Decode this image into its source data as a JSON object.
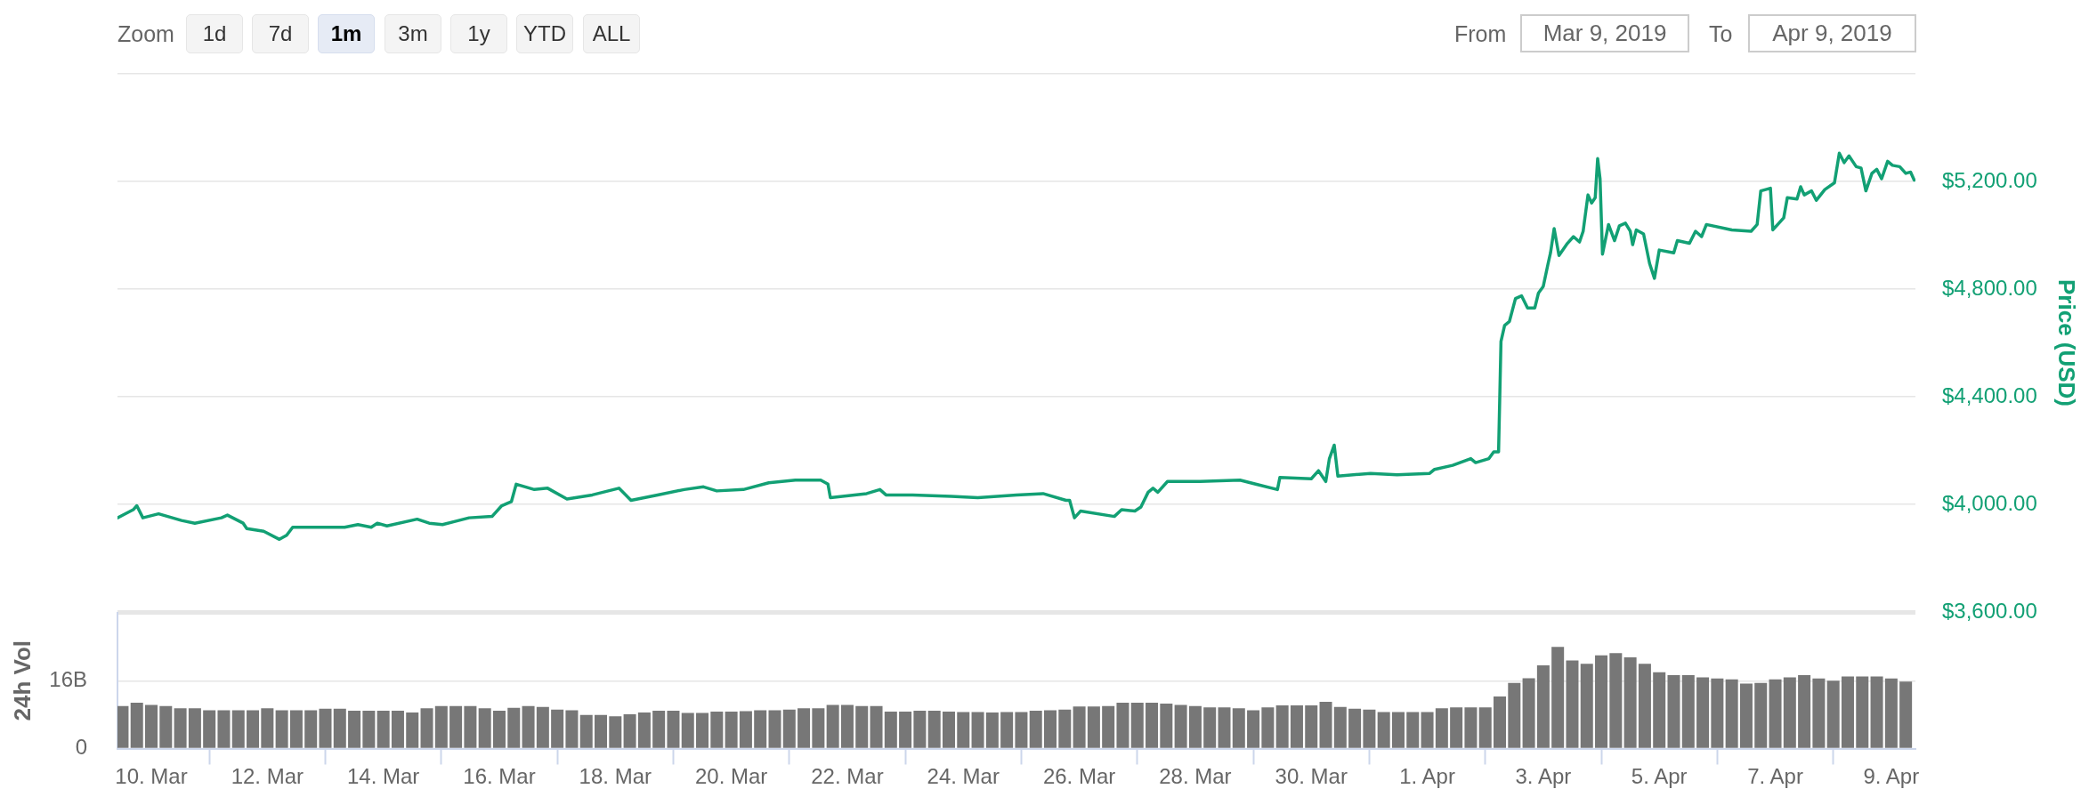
{
  "chart_data": [
    {
      "type": "line",
      "color": "#12a074",
      "xlim": [
        "2019-03-09T10:00",
        "2019-04-09T10:00"
      ],
      "ylim": [
        3600,
        5600
      ],
      "yticks": [
        {
          "value": 3600,
          "label": "$3,600.00"
        },
        {
          "value": 4000,
          "label": "$4,000.00"
        },
        {
          "value": 4400,
          "label": "$4,400.00"
        },
        {
          "value": 4800,
          "label": "$4,800.00"
        },
        {
          "value": 5200,
          "label": "$5,200.00"
        },
        {
          "value": 5600,
          "label": null
        }
      ],
      "ylabel": "Price (USD)",
      "grid": "y",
      "tick_labels": "y",
      "annotations": [
        "Zoom",
        "1d",
        "7d",
        "1m",
        "3m",
        "1y",
        "YTD",
        "ALL",
        "From",
        "Mar 9, 2019",
        "To",
        "Apr 9, 2019"
      ],
      "x": [
        "2019-03-09T10:00",
        "2019-03-09T16:30",
        "2019-03-09T18:00",
        "2019-03-09T20:30",
        "2019-03-10T03:00",
        "2019-03-10T12:30",
        "2019-03-10T18:00",
        "2019-03-11T05:00",
        "2019-03-11T07:30",
        "2019-03-11T14:00",
        "2019-03-11T15:30",
        "2019-03-11T22:30",
        "2019-03-12T05:00",
        "2019-03-12T08:00",
        "2019-03-12T10:30",
        "2019-03-12T21:30",
        "2019-03-13T08:00",
        "2019-03-13T13:30",
        "2019-03-13T19:00",
        "2019-03-13T21:30",
        "2019-03-14T01:30",
        "2019-03-14T14:00",
        "2019-03-14T19:00",
        "2019-03-15T00:30",
        "2019-03-15T11:30",
        "2019-03-15T21:00",
        "2019-03-16T01:00",
        "2019-03-16T05:00",
        "2019-03-16T07:00",
        "2019-03-16T14:30",
        "2019-03-16T20:00",
        "2019-03-17T04:00",
        "2019-03-17T14:30",
        "2019-03-18T01:30",
        "2019-03-18T06:30",
        "2019-03-18T17:30",
        "2019-03-19T04:30",
        "2019-03-19T12:30",
        "2019-03-19T18:00",
        "2019-03-20T05:00",
        "2019-03-20T15:30",
        "2019-03-21T02:30",
        "2019-03-21T13:00",
        "2019-03-21T16:00",
        "2019-03-21T17:00",
        "2019-03-22T08:00",
        "2019-03-22T13:30",
        "2019-03-22T16:00",
        "2019-03-23T03:00",
        "2019-03-23T19:00",
        "2019-03-24T06:00",
        "2019-03-24T22:00",
        "2019-03-25T09:00",
        "2019-03-25T18:30",
        "2019-03-25T20:00",
        "2019-03-25T22:00",
        "2019-03-26T00:30",
        "2019-03-26T14:30",
        "2019-03-26T17:30",
        "2019-03-26T23:00",
        "2019-03-27T01:30",
        "2019-03-27T04:30",
        "2019-03-27T06:30",
        "2019-03-27T08:30",
        "2019-03-27T12:30",
        "2019-03-28T02:00",
        "2019-03-28T18:30",
        "2019-03-29T01:00",
        "2019-03-29T10:00",
        "2019-03-29T11:00",
        "2019-03-30T00:00",
        "2019-03-30T03:00",
        "2019-03-30T06:00",
        "2019-03-30T07:30",
        "2019-03-30T09:30",
        "2019-03-30T11:00",
        "2019-03-31T00:30",
        "2019-03-31T11:30",
        "2019-04-01T01:00",
        "2019-04-01T03:00",
        "2019-04-01T10:30",
        "2019-04-01T18:00",
        "2019-04-01T20:00",
        "2019-04-02T01:30",
        "2019-04-02T03:30",
        "2019-04-02T05:30",
        "2019-04-02T06:30",
        "2019-04-02T08:00",
        "2019-04-02T10:00",
        "2019-04-02T12:30",
        "2019-04-02T15:00",
        "2019-04-02T17:30",
        "2019-04-02T20:30",
        "2019-04-02T22:00",
        "2019-04-03T00:00",
        "2019-04-03T02:00",
        "2019-04-03T03:00",
        "2019-04-03T04:30",
        "2019-04-03T06:30",
        "2019-04-03T10:00",
        "2019-04-03T12:30",
        "2019-04-03T15:00",
        "2019-04-03T16:30",
        "2019-04-03T18:30",
        "2019-04-03T20:00",
        "2019-04-03T21:30",
        "2019-04-03T22:30",
        "2019-04-03T23:30",
        "2019-04-04T00:30",
        "2019-04-04T03:00",
        "2019-04-04T05:30",
        "2019-04-04T07:30",
        "2019-04-04T10:00",
        "2019-04-04T12:00",
        "2019-04-04T13:00",
        "2019-04-04T14:30",
        "2019-04-04T17:30",
        "2019-04-04T20:00",
        "2019-04-04T22:00",
        "2019-04-05T00:00",
        "2019-04-05T06:00",
        "2019-04-05T07:30",
        "2019-04-05T12:30",
        "2019-04-05T15:00",
        "2019-04-05T17:30",
        "2019-04-05T19:30",
        "2019-04-06T06:00",
        "2019-04-06T14:00",
        "2019-04-06T16:30",
        "2019-04-06T18:00",
        "2019-04-06T22:00",
        "2019-04-06T23:00",
        "2019-04-07T03:30",
        "2019-04-07T05:00",
        "2019-04-07T09:00",
        "2019-04-07T10:30",
        "2019-04-07T12:00",
        "2019-04-07T15:00",
        "2019-04-07T17:00",
        "2019-04-07T20:30",
        "2019-04-08T00:30",
        "2019-04-08T02:30",
        "2019-04-08T04:30",
        "2019-04-08T06:30",
        "2019-04-08T09:30",
        "2019-04-08T11:30",
        "2019-04-08T13:30",
        "2019-04-08T16:00",
        "2019-04-08T18:00",
        "2019-04-08T20:00",
        "2019-04-08T22:30",
        "2019-04-09T00:30",
        "2019-04-09T03:30",
        "2019-04-09T06:00",
        "2019-04-09T08:00",
        "2019-04-09T09:30"
      ],
      "values": [
        3950,
        3980,
        3995,
        3950,
        3965,
        3940,
        3930,
        3950,
        3960,
        3930,
        3910,
        3900,
        3870,
        3885,
        3915,
        3915,
        3915,
        3925,
        3915,
        3930,
        3920,
        3945,
        3930,
        3925,
        3950,
        3955,
        3995,
        4010,
        4075,
        4055,
        4060,
        4020,
        4035,
        4060,
        4015,
        4035,
        4055,
        4065,
        4050,
        4055,
        4080,
        4090,
        4090,
        4075,
        4025,
        4040,
        4055,
        4035,
        4035,
        4030,
        4025,
        4035,
        4040,
        4015,
        4015,
        3950,
        3975,
        3955,
        3980,
        3975,
        3990,
        4045,
        4060,
        4045,
        4085,
        4085,
        4090,
        4075,
        4055,
        4100,
        4095,
        4125,
        4085,
        4170,
        4220,
        4105,
        4115,
        4110,
        4115,
        4130,
        4145,
        4170,
        4155,
        4170,
        4195,
        4195,
        4605,
        4665,
        4680,
        4765,
        4775,
        4730,
        4730,
        4785,
        4810,
        4895,
        4935,
        5025,
        4925,
        4970,
        4995,
        4975,
        5015,
        5150,
        5120,
        5140,
        5285,
        5210,
        4930,
        5040,
        4980,
        5035,
        5045,
        5015,
        4965,
        5020,
        5005,
        4895,
        4840,
        4945,
        4935,
        4980,
        4970,
        5015,
        4995,
        5040,
        5020,
        5015,
        5040,
        5165,
        5175,
        5020,
        5065,
        5140,
        5135,
        5180,
        5150,
        5165,
        5130,
        5170,
        5195,
        5305,
        5270,
        5295,
        5255,
        5250,
        5165,
        5230,
        5245,
        5210,
        5275,
        5260,
        5255,
        5230,
        5235,
        5205
      ]
    },
    {
      "type": "bar",
      "color": "#777777",
      "xlim": [
        "2019-03-09T10:00",
        "2019-04-09T10:00"
      ],
      "xticks": [
        {
          "value": "2019-03-10",
          "label": "10. Mar"
        },
        {
          "value": "2019-03-12",
          "label": "12. Mar"
        },
        {
          "value": "2019-03-14",
          "label": "14. Mar"
        },
        {
          "value": "2019-03-16",
          "label": "16. Mar"
        },
        {
          "value": "2019-03-18",
          "label": "18. Mar"
        },
        {
          "value": "2019-03-20",
          "label": "20. Mar"
        },
        {
          "value": "2019-03-22",
          "label": "22. Mar"
        },
        {
          "value": "2019-03-24",
          "label": "24. Mar"
        },
        {
          "value": "2019-03-26",
          "label": "26. Mar"
        },
        {
          "value": "2019-03-28",
          "label": "28. Mar"
        },
        {
          "value": "2019-03-30",
          "label": "30. Mar"
        },
        {
          "value": "2019-04-01",
          "label": "1. Apr"
        },
        {
          "value": "2019-04-03",
          "label": "3. Apr"
        },
        {
          "value": "2019-04-05",
          "label": "5. Apr"
        },
        {
          "value": "2019-04-07",
          "label": "7. Apr"
        },
        {
          "value": "2019-04-09",
          "label": "9. Apr"
        }
      ],
      "ylim": [
        0,
        32
      ],
      "yticks": [
        0,
        {
          "value": 16,
          "label": "16B"
        }
      ],
      "ylabel": "24h Vol",
      "grid": "y",
      "x": [
        "2019-03-09T12:00",
        "2019-03-09T18:00",
        "2019-03-10T00:00",
        "2019-03-10T06:00",
        "2019-03-10T12:00",
        "2019-03-10T18:00",
        "2019-03-11T00:00",
        "2019-03-11T06:00",
        "2019-03-11T12:00",
        "2019-03-11T18:00",
        "2019-03-12T00:00",
        "2019-03-12T06:00",
        "2019-03-12T12:00",
        "2019-03-12T18:00",
        "2019-03-13T00:00",
        "2019-03-13T06:00",
        "2019-03-13T12:00",
        "2019-03-13T18:00",
        "2019-03-14T00:00",
        "2019-03-14T06:00",
        "2019-03-14T12:00",
        "2019-03-14T18:00",
        "2019-03-15T00:00",
        "2019-03-15T06:00",
        "2019-03-15T12:00",
        "2019-03-15T18:00",
        "2019-03-16T00:00",
        "2019-03-16T06:00",
        "2019-03-16T12:00",
        "2019-03-16T18:00",
        "2019-03-17T00:00",
        "2019-03-17T06:00",
        "2019-03-17T12:00",
        "2019-03-17T18:00",
        "2019-03-18T00:00",
        "2019-03-18T06:00",
        "2019-03-18T12:00",
        "2019-03-18T18:00",
        "2019-03-19T00:00",
        "2019-03-19T06:00",
        "2019-03-19T12:00",
        "2019-03-19T18:00",
        "2019-03-20T00:00",
        "2019-03-20T06:00",
        "2019-03-20T12:00",
        "2019-03-20T18:00",
        "2019-03-21T00:00",
        "2019-03-21T06:00",
        "2019-03-21T12:00",
        "2019-03-21T18:00",
        "2019-03-22T00:00",
        "2019-03-22T06:00",
        "2019-03-22T12:00",
        "2019-03-22T18:00",
        "2019-03-23T00:00",
        "2019-03-23T06:00",
        "2019-03-23T12:00",
        "2019-03-23T18:00",
        "2019-03-24T00:00",
        "2019-03-24T06:00",
        "2019-03-24T12:00",
        "2019-03-24T18:00",
        "2019-03-25T00:00",
        "2019-03-25T06:00",
        "2019-03-25T12:00",
        "2019-03-25T18:00",
        "2019-03-26T00:00",
        "2019-03-26T06:00",
        "2019-03-26T12:00",
        "2019-03-26T18:00",
        "2019-03-27T00:00",
        "2019-03-27T06:00",
        "2019-03-27T12:00",
        "2019-03-27T18:00",
        "2019-03-28T00:00",
        "2019-03-28T06:00",
        "2019-03-28T12:00",
        "2019-03-28T18:00",
        "2019-03-29T00:00",
        "2019-03-29T06:00",
        "2019-03-29T12:00",
        "2019-03-29T18:00",
        "2019-03-30T00:00",
        "2019-03-30T06:00",
        "2019-03-30T12:00",
        "2019-03-30T18:00",
        "2019-03-31T00:00",
        "2019-03-31T06:00",
        "2019-03-31T12:00",
        "2019-03-31T18:00",
        "2019-04-01T00:00",
        "2019-04-01T06:00",
        "2019-04-01T12:00",
        "2019-04-01T18:00",
        "2019-04-02T00:00",
        "2019-04-02T06:00",
        "2019-04-02T12:00",
        "2019-04-02T18:00",
        "2019-04-03T00:00",
        "2019-04-03T06:00",
        "2019-04-03T12:00",
        "2019-04-03T18:00",
        "2019-04-04T00:00",
        "2019-04-04T06:00",
        "2019-04-04T12:00",
        "2019-04-04T18:00",
        "2019-04-05T00:00",
        "2019-04-05T06:00",
        "2019-04-05T12:00",
        "2019-04-05T18:00",
        "2019-04-06T00:00",
        "2019-04-06T06:00",
        "2019-04-06T12:00",
        "2019-04-06T18:00",
        "2019-04-07T00:00",
        "2019-04-07T06:00",
        "2019-04-07T12:00",
        "2019-04-07T18:00",
        "2019-04-08T00:00",
        "2019-04-08T06:00",
        "2019-04-08T12:00",
        "2019-04-08T18:00",
        "2019-04-09T00:00",
        "2019-04-09T06:00"
      ],
      "values": [
        10.0,
        10.8,
        10.3,
        10.0,
        9.5,
        9.5,
        9.0,
        9.0,
        9.0,
        9.0,
        9.5,
        9.0,
        9.0,
        9.0,
        9.4,
        9.4,
        8.9,
        8.9,
        8.9,
        8.9,
        8.5,
        9.5,
        10.0,
        10.0,
        10.0,
        9.5,
        8.9,
        9.6,
        10.0,
        9.8,
        9.2,
        9.0,
        7.9,
        7.9,
        7.6,
        8.1,
        8.5,
        8.9,
        8.9,
        8.4,
        8.4,
        8.7,
        8.7,
        8.8,
        9.0,
        9.0,
        9.2,
        9.5,
        9.5,
        10.3,
        10.3,
        10.0,
        10.0,
        8.7,
        8.7,
        8.9,
        8.9,
        8.7,
        8.6,
        8.6,
        8.5,
        8.6,
        8.6,
        8.9,
        9.0,
        9.2,
        9.9,
        9.9,
        10.0,
        10.8,
        10.8,
        10.8,
        10.6,
        10.3,
        10.0,
        9.7,
        9.7,
        9.5,
        9.0,
        9.7,
        10.2,
        10.2,
        10.2,
        11.0,
        9.8,
        9.4,
        9.2,
        8.6,
        8.6,
        8.6,
        8.6,
        9.5,
        9.7,
        9.7,
        9.7,
        12.3,
        15.5,
        16.6,
        19.6,
        24.0,
        20.8,
        20.0,
        22.0,
        22.5,
        21.5,
        20.0,
        18.0,
        17.3,
        17.3,
        16.8,
        16.5,
        16.3,
        15.3,
        15.5,
        16.3,
        16.8,
        17.3,
        16.5,
        16.0,
        17.0,
        17.0,
        17.0,
        16.5,
        15.8
      ]
    }
  ]
}
